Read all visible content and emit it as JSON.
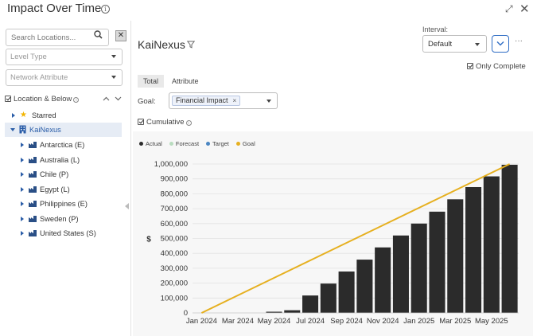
{
  "window": {
    "title": "Impact Over Time",
    "info_icon": "info-circle-icon",
    "expand_icon": "expand-icon",
    "close_icon": "close-icon"
  },
  "sidebar": {
    "search_placeholder": "Search Locations...",
    "level_type_placeholder": "Level Type",
    "network_attribute_placeholder": "Network Attribute",
    "tree_header": "Location & Below",
    "starred_label": "Starred",
    "root_label": "KaiNexus",
    "children": [
      {
        "label": "Antarctica (E)"
      },
      {
        "label": "Australia (L)"
      },
      {
        "label": "Chile (P)"
      },
      {
        "label": "Egypt (L)"
      },
      {
        "label": "Philippines (E)"
      },
      {
        "label": "Sweden (P)"
      },
      {
        "label": "United States (S)"
      }
    ]
  },
  "main": {
    "title": "KaiNexus",
    "interval_label": "Interval:",
    "interval_value": "Default",
    "more_label": "···",
    "only_complete_label": "Only Complete",
    "tabs": [
      {
        "label": "Total"
      },
      {
        "label": "Attribute"
      }
    ],
    "goal_label": "Goal:",
    "goal_chip": "Financial Impact",
    "goal_chip_remove": "×",
    "cumulative_label": "Cumulative"
  },
  "legend": [
    {
      "label": "Actual",
      "color": "#2b2b2b"
    },
    {
      "label": "Forecast",
      "color": "#b9dcbf"
    },
    {
      "label": "Target",
      "color": "#4b86c2"
    },
    {
      "label": "Goal",
      "color": "#e6b020"
    }
  ],
  "chart_data": {
    "type": "bar",
    "ylabel": "$",
    "ylim": [
      0,
      1000000
    ],
    "yticks": [
      "0",
      "100,000",
      "200,000",
      "300,000",
      "400,000",
      "500,000",
      "600,000",
      "700,000",
      "800,000",
      "900,000",
      "1,000,000"
    ],
    "categories": [
      "Jan 2024",
      "Feb 2024",
      "Mar 2024",
      "Apr 2024",
      "May 2024",
      "Jun 2024",
      "Jul 2024",
      "Aug 2024",
      "Sep 2024",
      "Oct 2024",
      "Nov 2024",
      "Dec 2024",
      "Jan 2025",
      "Feb 2025",
      "Mar 2025",
      "Apr 2025",
      "May 2025",
      "Jun 2025"
    ],
    "xtick_labels": [
      "Jan 2024",
      "Mar 2024",
      "May 2024",
      "Jul 2024",
      "Sep 2024",
      "Nov 2024",
      "Jan 2025",
      "Mar 2025",
      "May 2025"
    ],
    "series": [
      {
        "name": "Actual",
        "color": "#2b2b2b",
        "values": [
          0,
          0,
          0,
          0,
          8000,
          18000,
          117000,
          197000,
          278000,
          358000,
          440000,
          520000,
          600000,
          680000,
          763000,
          845000,
          917000,
          995000
        ]
      },
      {
        "name": "Goal",
        "type": "line",
        "color": "#e6b020",
        "values": [
          0,
          58800,
          117600,
          176500,
          235300,
          294100,
          352900,
          411800,
          470600,
          529400,
          588200,
          647100,
          705900,
          764700,
          823500,
          882400,
          941200,
          1000000
        ]
      }
    ],
    "grid": true
  }
}
